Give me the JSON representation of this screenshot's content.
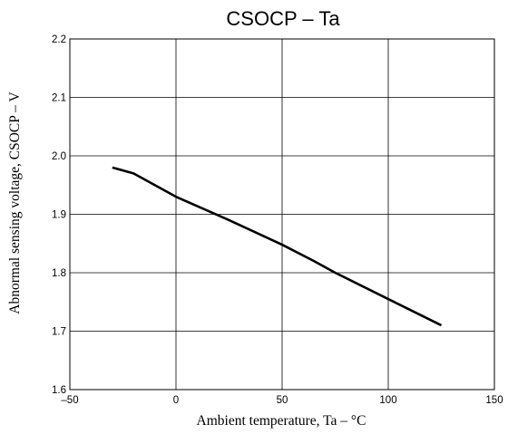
{
  "chart_data": {
    "type": "line",
    "title": "CSOCP – Ta",
    "xlabel": "Ambient temperature, Ta – °C",
    "ylabel": "Abnormal sensing voltage, CSOCP – V",
    "xlim": [
      -50,
      150
    ],
    "ylim": [
      1.6,
      2.2
    ],
    "x_ticks": [
      "–50",
      "0",
      "50",
      "100",
      "150"
    ],
    "x_tick_values": [
      -50,
      0,
      50,
      100,
      150
    ],
    "y_ticks": [
      "1.6",
      "1.7",
      "1.8",
      "1.9",
      "2.0",
      "2.1",
      "2.2"
    ],
    "y_tick_values": [
      1.6,
      1.7,
      1.8,
      1.9,
      2.0,
      2.1,
      2.2
    ],
    "grid": true,
    "series": [
      {
        "x": [
          -30,
          -20,
          -10,
          0,
          25,
          50,
          65,
          75,
          100,
          125
        ],
        "y": [
          1.98,
          1.97,
          1.95,
          1.93,
          1.89,
          1.848,
          1.82,
          1.8,
          1.755,
          1.71
        ],
        "color": "#000000"
      }
    ]
  }
}
